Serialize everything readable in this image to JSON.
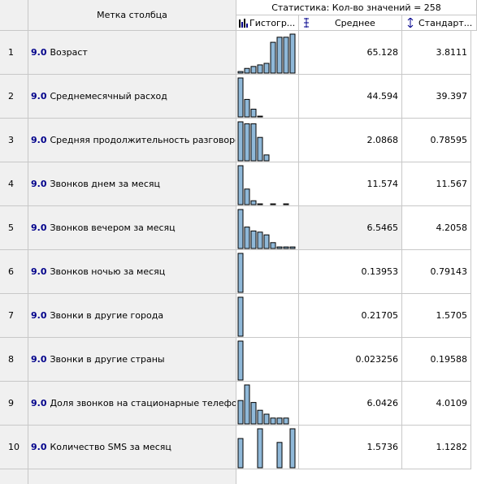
{
  "header": {
    "group": "Статистика: Кол-во значений = 258",
    "label_column": "Метка столбца",
    "columns": [
      "Гистогр...",
      "Среднее",
      "Стандарт..."
    ]
  },
  "rows": [
    {
      "index": 1,
      "type": "9.0",
      "label": "Возраст",
      "histogram": [
        0.04,
        0.12,
        0.17,
        0.21,
        0.25,
        0.79,
        0.92,
        0.92,
        1
      ],
      "mean": 65.128,
      "std": 3.8111
    },
    {
      "index": 2,
      "type": "9.0",
      "label": "Среднемесячный расход",
      "histogram": [
        1,
        0.45,
        0.2,
        0.02
      ],
      "mean": 44.594,
      "std": 39.397
    },
    {
      "index": 3,
      "type": "9.0",
      "label": "Средняя продолжительность разговоров",
      "histogram": [
        1,
        0.95,
        0.95,
        0.6,
        0.15
      ],
      "mean": 2.0868,
      "std": 0.78595
    },
    {
      "index": 4,
      "type": "9.0",
      "label": "Звонков днем за месяц",
      "histogram": [
        1,
        0.4,
        0.1,
        0.02,
        0,
        0.02,
        0,
        0.02
      ],
      "mean": 11.574,
      "std": 11.567
    },
    {
      "index": 5,
      "type": "9.0",
      "label": "Звонков вечером за месяц",
      "histogram": [
        1,
        0.55,
        0.45,
        0.42,
        0.35,
        0.15,
        0.04,
        0.04,
        0.04
      ],
      "mean": 6.5465,
      "std": 4.2058
    },
    {
      "index": 6,
      "type": "9.0",
      "label": "Звонков ночью за месяц",
      "histogram": [
        1
      ],
      "mean": 0.13953,
      "std": 0.79143
    },
    {
      "index": 7,
      "type": "9.0",
      "label": "Звонки в другие города",
      "histogram": [
        1
      ],
      "mean": 0.21705,
      "std": 1.5705
    },
    {
      "index": 8,
      "type": "9.0",
      "label": "Звонки в другие страны",
      "histogram": [
        1
      ],
      "mean": 0.023256,
      "std": 0.19588
    },
    {
      "index": 9,
      "type": "9.0",
      "label": "Доля звонков на стационарные телефоны",
      "histogram": [
        0.6,
        1,
        0.55,
        0.35,
        0.25,
        0.15,
        0.15,
        0.15
      ],
      "mean": 6.0426,
      "std": 4.0109
    },
    {
      "index": 10,
      "type": "9.0",
      "label": "Количество SMS за месяц",
      "histogram": [
        0.75,
        0,
        0,
        1,
        0,
        0,
        0.65,
        0,
        1
      ],
      "mean": 1.5736,
      "std": 1.1282
    }
  ]
}
